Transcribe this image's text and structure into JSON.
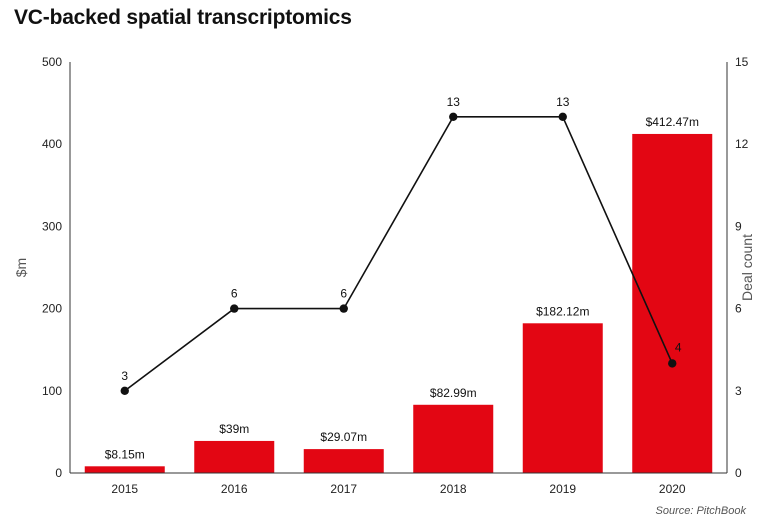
{
  "title": "VC-backed spatial transcriptomics",
  "source": "Source: PitchBook",
  "colors": {
    "bar": "#e30613",
    "line": "#111111",
    "axis": "#333333"
  },
  "chart_data": {
    "type": "bar+line",
    "categories": [
      "2015",
      "2016",
      "2017",
      "2018",
      "2019",
      "2020"
    ],
    "series": [
      {
        "name": "$m",
        "type": "bar",
        "axis": "left",
        "values": [
          8.15,
          39,
          29.07,
          82.99,
          182.12,
          412.47
        ],
        "labels": [
          "$8.15m",
          "$39m",
          "$29.07m",
          "$82.99m",
          "$182.12m",
          "$412.47m"
        ]
      },
      {
        "name": "Deal count",
        "type": "line",
        "axis": "right",
        "values": [
          3,
          6,
          6,
          13,
          13,
          4
        ],
        "labels": [
          "3",
          "6",
          "6",
          "13",
          "13",
          "4"
        ]
      }
    ],
    "ylabel": "$m",
    "y2label": "Deal count",
    "ylim": [
      0,
      500
    ],
    "y2lim": [
      0,
      15
    ],
    "yticks": [
      "0",
      "100",
      "200",
      "300",
      "400",
      "500"
    ],
    "y2ticks": [
      "0",
      "3",
      "6",
      "9",
      "12",
      "15"
    ],
    "grid": false,
    "legend": "none"
  }
}
